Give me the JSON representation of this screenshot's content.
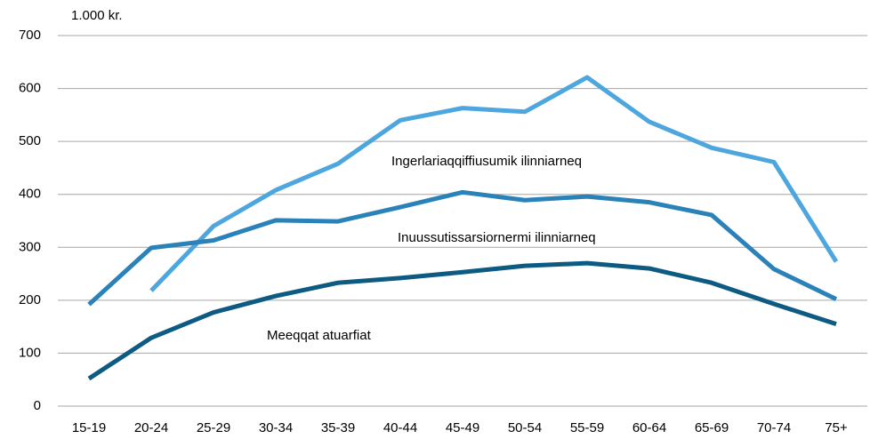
{
  "chart_data": {
    "type": "line",
    "unit": "1.000 kr.",
    "categories": [
      "15-19",
      "20-24",
      "25-29",
      "30-34",
      "35-39",
      "40-44",
      "45-49",
      "50-54",
      "55-59",
      "60-64",
      "65-69",
      "70-74",
      "75+"
    ],
    "series": [
      {
        "name": "Ingerlariaqqiffiusumik ilinniarneq",
        "color": "#4da6dd",
        "values": [
          null,
          218,
          340,
          408,
          458,
          540,
          563,
          556,
          621,
          537,
          488,
          461,
          273
        ]
      },
      {
        "name": "Inuussutissarsiornermi ilinniarneq",
        "color": "#2a82b8",
        "values": [
          192,
          299,
          313,
          351,
          349,
          376,
          404,
          389,
          396,
          385,
          361,
          259,
          202
        ]
      },
      {
        "name": "Meeqqat atuarfiat",
        "color": "#0d5a82",
        "values": [
          52,
          129,
          177,
          208,
          233,
          242,
          253,
          265,
          270,
          260,
          233,
          193,
          155
        ]
      }
    ],
    "ylim": [
      0,
      700
    ],
    "yticks": [
      0,
      100,
      200,
      300,
      400,
      500,
      600,
      700
    ],
    "grid": true
  }
}
